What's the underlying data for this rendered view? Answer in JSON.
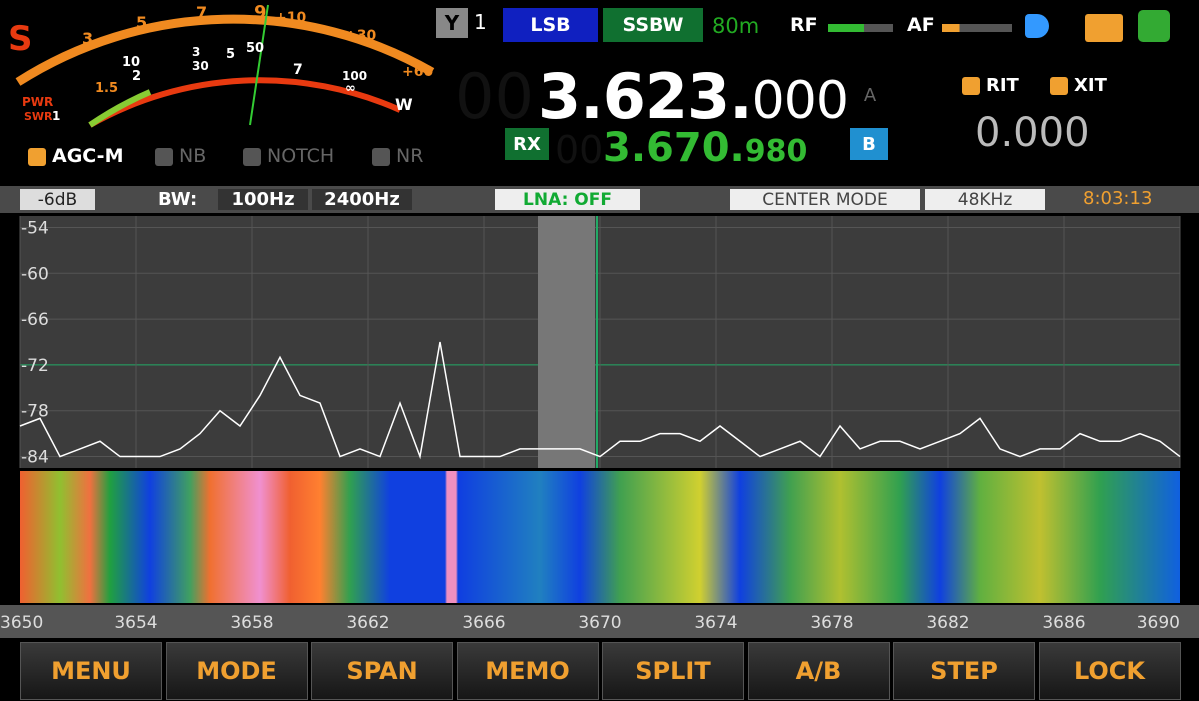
{
  "meter": {
    "labels": [
      "S",
      "3",
      "5",
      "7",
      "9",
      "+10",
      "+30",
      "+60",
      "1",
      "1.5",
      "2",
      "10",
      "3",
      "30",
      "5",
      "50",
      "7",
      "100",
      "∞",
      "W",
      "PWR",
      "SWR"
    ]
  },
  "toggles": {
    "agc": "AGC-M",
    "nb": "NB",
    "notch": "NOTCH",
    "nr": "NR"
  },
  "header": {
    "antenna": "1",
    "mode": "LSB",
    "filter": "SSBW",
    "band": "80m",
    "rf": "RF",
    "af": "AF"
  },
  "vfo_a": {
    "ghost": "00",
    "freq": "3.623.",
    "freq_small": "000",
    "label": "A"
  },
  "vfo_b": {
    "rx": "RX",
    "ghost": "00",
    "freq": "3.670.",
    "freq_small": "980",
    "label": "B"
  },
  "rit": "RIT",
  "xit": "XIT",
  "offset": "0.000",
  "status": {
    "gain": "-6dB",
    "bw_label": "BW:",
    "bw_low": "100Hz",
    "bw_high": "2400Hz",
    "lna": "LNA: OFF",
    "center": "CENTER MODE",
    "rate": "48KHz",
    "time": "8:03:13"
  },
  "spectrum": {
    "ylim": [
      -85.5,
      -52.5
    ],
    "yticks": [
      -54,
      -60,
      -66,
      -72,
      -78,
      -84
    ],
    "xlim": [
      3650,
      3690
    ],
    "xticks": [
      3650,
      3654,
      3658,
      3662,
      3666,
      3670,
      3674,
      3678,
      3682,
      3686,
      3690
    ],
    "trace": [
      -80,
      -79,
      -84,
      -83,
      -82,
      -84,
      -84,
      -84,
      -83,
      -81,
      -78,
      -80,
      -76,
      -71,
      -76,
      -77,
      -84,
      -83,
      -84,
      -77,
      -84,
      -69,
      -84,
      -84,
      -84,
      -83,
      -83,
      -83,
      -83,
      -84,
      -82,
      -82,
      -81,
      -81,
      -82,
      -80,
      -82,
      -84,
      -83,
      -82,
      -84,
      -80,
      -83,
      -82,
      -82,
      -83,
      -82,
      -81,
      -79,
      -83,
      -84,
      -83,
      -83,
      -81,
      -82,
      -82,
      -81,
      -82,
      -84
    ]
  },
  "buttons": [
    "MENU",
    "MODE",
    "SPAN",
    "MEMO",
    "SPLIT",
    "A/B",
    "STEP",
    "LOCK"
  ]
}
